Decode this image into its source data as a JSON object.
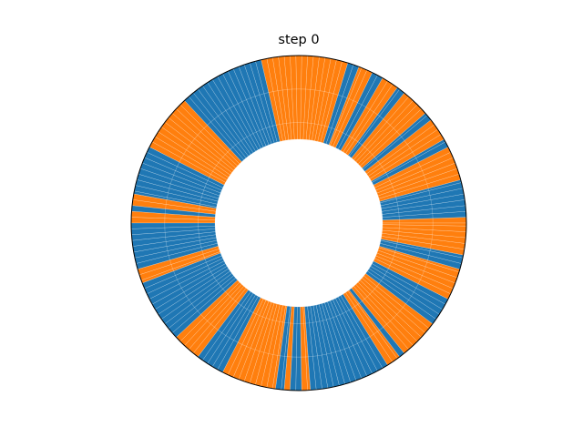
{
  "chart_data": {
    "type": "bar",
    "projection": "polar",
    "title": "step 0",
    "xlabel": "",
    "ylabel": "",
    "angular_range_deg": [
      0,
      360
    ],
    "ylim": [
      0,
      1
    ],
    "bar_bottom": 0.5,
    "bar_height": 0.5,
    "colors": {
      "a": "#1f77b4",
      "b": "#ff7f0e"
    },
    "grid": true,
    "segments": [
      {
        "color": "b",
        "start": 0,
        "end": 2
      },
      {
        "color": "a",
        "start": 2,
        "end": 15
      },
      {
        "color": "b",
        "start": 15,
        "end": 27
      },
      {
        "color": "a",
        "start": 27,
        "end": 30
      },
      {
        "color": "b",
        "start": 30,
        "end": 38
      },
      {
        "color": "a",
        "start": 38,
        "end": 41
      },
      {
        "color": "b",
        "start": 41,
        "end": 51
      },
      {
        "color": "a",
        "start": 51,
        "end": 54
      },
      {
        "color": "b",
        "start": 54,
        "end": 60
      },
      {
        "color": "a",
        "start": 60,
        "end": 64
      },
      {
        "color": "b",
        "start": 64,
        "end": 69
      },
      {
        "color": "a",
        "start": 69,
        "end": 73
      },
      {
        "color": "b",
        "start": 73,
        "end": 103
      },
      {
        "color": "a",
        "start": 103,
        "end": 133
      },
      {
        "color": "b",
        "start": 133,
        "end": 153
      },
      {
        "color": "a",
        "start": 153,
        "end": 170
      },
      {
        "color": "b",
        "start": 170,
        "end": 174
      },
      {
        "color": "a",
        "start": 174,
        "end": 176
      },
      {
        "color": "b",
        "start": 176,
        "end": 180
      },
      {
        "color": "a",
        "start": 180,
        "end": 196
      },
      {
        "color": "b",
        "start": 196,
        "end": 201
      },
      {
        "color": "a",
        "start": 201,
        "end": 223
      },
      {
        "color": "b",
        "start": 223,
        "end": 233
      },
      {
        "color": "a",
        "start": 233,
        "end": 243
      },
      {
        "color": "b",
        "start": 243,
        "end": 262
      },
      {
        "color": "a",
        "start": 262,
        "end": 265
      },
      {
        "color": "b",
        "start": 265,
        "end": 267
      },
      {
        "color": "a",
        "start": 267,
        "end": 271
      },
      {
        "color": "b",
        "start": 271,
        "end": 274
      },
      {
        "color": "a",
        "start": 274,
        "end": 302
      },
      {
        "color": "b",
        "start": 302,
        "end": 307
      },
      {
        "color": "a",
        "start": 307,
        "end": 309
      },
      {
        "color": "b",
        "start": 309,
        "end": 323
      },
      {
        "color": "a",
        "start": 323,
        "end": 333
      },
      {
        "color": "b",
        "start": 333,
        "end": 344
      },
      {
        "color": "a",
        "start": 344,
        "end": 349
      },
      {
        "color": "b",
        "start": 349,
        "end": 360
      }
    ]
  }
}
